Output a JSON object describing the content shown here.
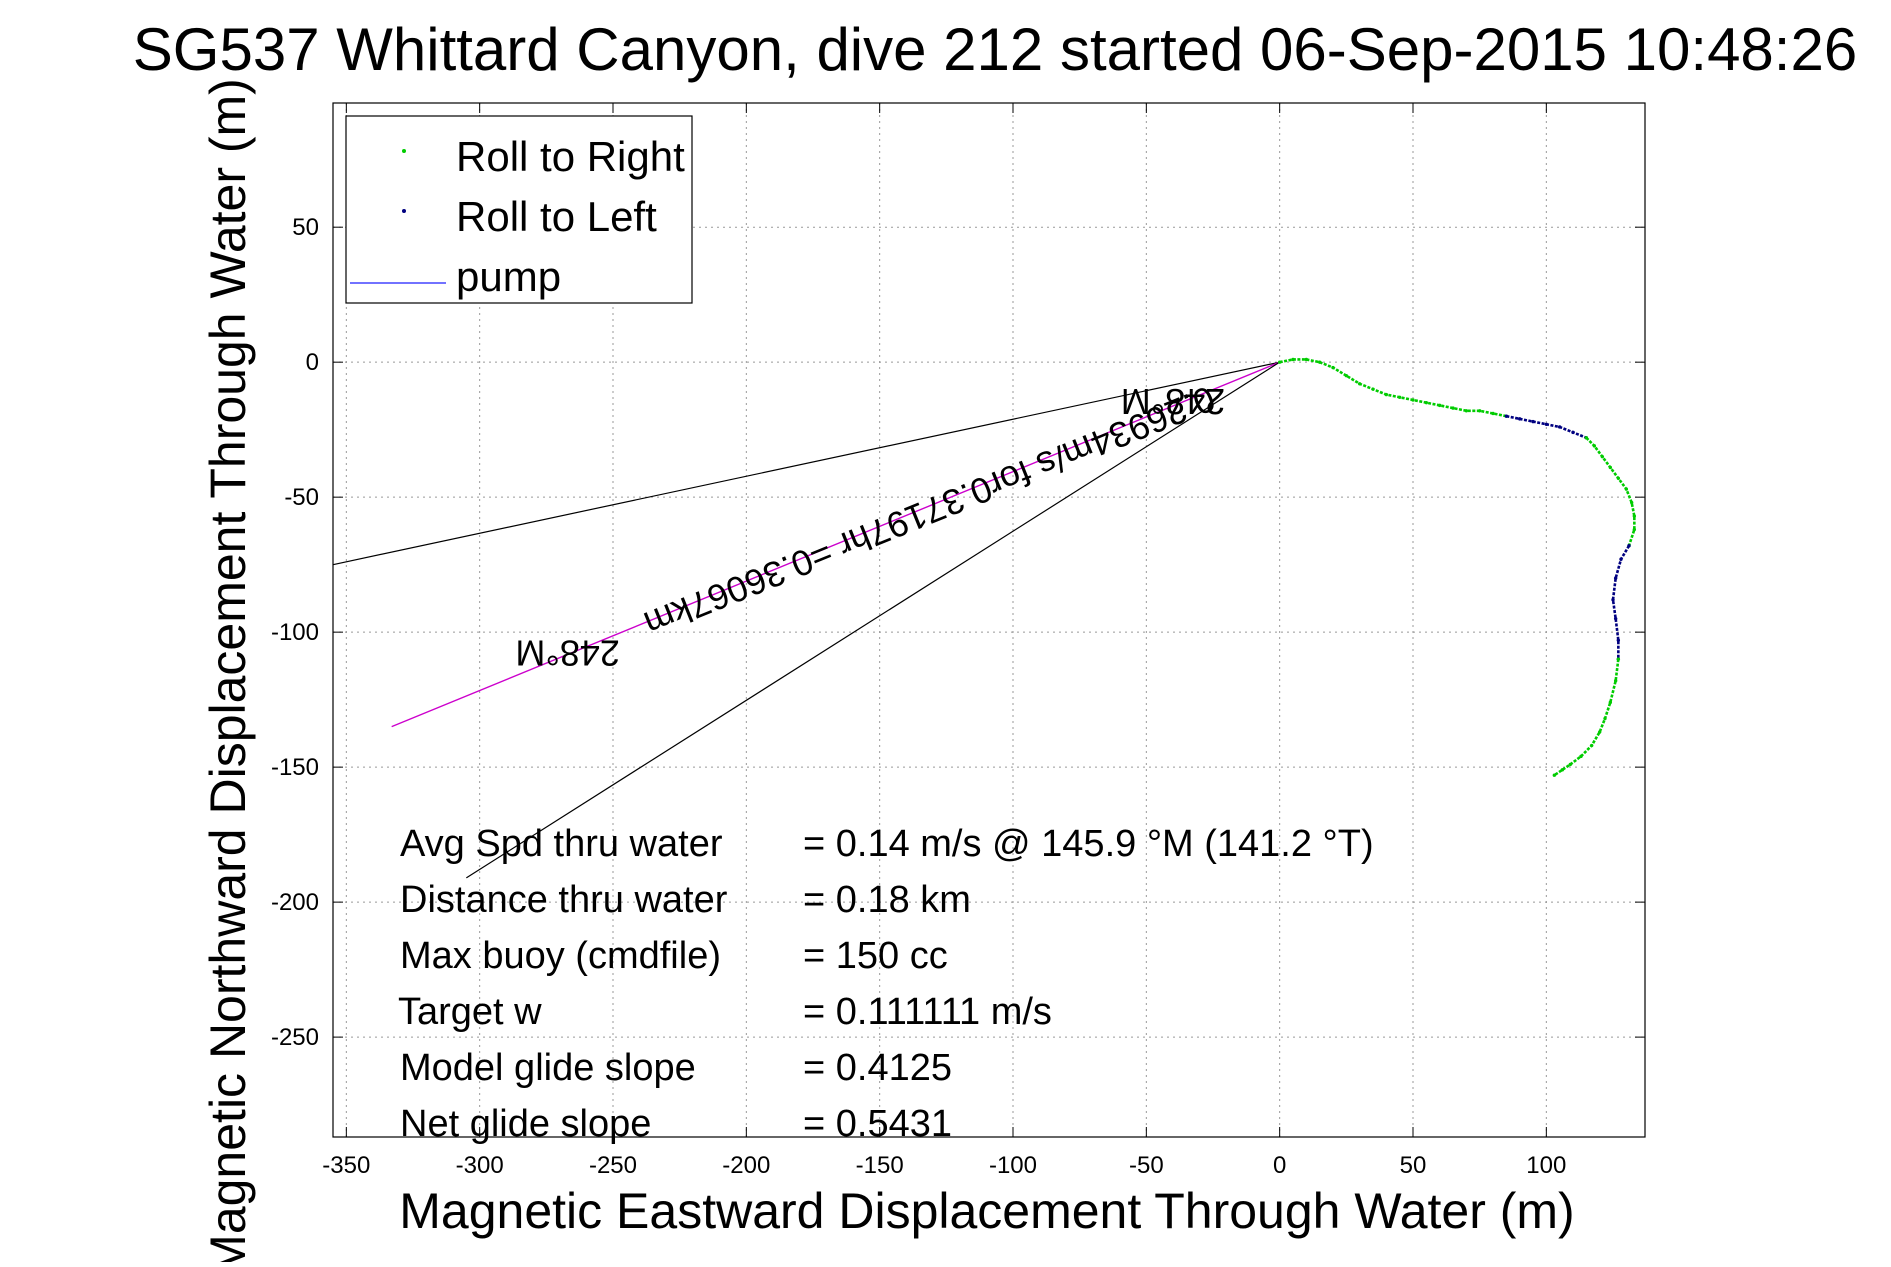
{
  "chart_data": {
    "type": "scatter",
    "title": "SG537 Whittard Canyon, dive 212 started 06-Sep-2015 10:48:26",
    "xlabel": "Magnetic Eastward Displacement Through Water (m)",
    "ylabel": "Magnetic Northward Displacement Through Water (m)",
    "xlim": [
      -355,
      137
    ],
    "ylim": [
      -287,
      96
    ],
    "xticks": [
      -350,
      -300,
      -250,
      -200,
      -150,
      -100,
      -50,
      0,
      50,
      100
    ],
    "yticks": [
      50,
      0,
      -50,
      -100,
      -150,
      -200,
      -250
    ],
    "grid": true,
    "legend_position": "top-left",
    "legend": [
      {
        "label": "Roll to Right",
        "color": "#00cc00",
        "marker": "dot"
      },
      {
        "label": "Roll to Left",
        "color": "#000080",
        "marker": "dot"
      },
      {
        "label": "pump",
        "color": "#4444ff",
        "marker": "line"
      }
    ],
    "track": [
      [
        0,
        0
      ],
      [
        5,
        1
      ],
      [
        10,
        1
      ],
      [
        15,
        0
      ],
      [
        20,
        -2
      ],
      [
        25,
        -5
      ],
      [
        30,
        -8
      ],
      [
        35,
        -10
      ],
      [
        40,
        -12
      ],
      [
        45,
        -13
      ],
      [
        50,
        -14
      ],
      [
        55,
        -15
      ],
      [
        60,
        -16
      ],
      [
        65,
        -17
      ],
      [
        70,
        -18
      ],
      [
        75,
        -18
      ],
      [
        80,
        -19
      ],
      [
        85,
        -20
      ],
      [
        90,
        -21
      ],
      [
        95,
        -22
      ],
      [
        100,
        -23
      ],
      [
        105,
        -24
      ],
      [
        110,
        -26
      ],
      [
        115,
        -28
      ],
      [
        118,
        -31
      ],
      [
        121,
        -35
      ],
      [
        124,
        -39
      ],
      [
        127,
        -43
      ],
      [
        130,
        -47
      ],
      [
        132,
        -52
      ],
      [
        133,
        -57
      ],
      [
        133,
        -62
      ],
      [
        131,
        -68
      ],
      [
        128,
        -73
      ],
      [
        126,
        -80
      ],
      [
        125,
        -88
      ],
      [
        126,
        -95
      ],
      [
        127,
        -103
      ],
      [
        127,
        -110
      ],
      [
        126,
        -118
      ],
      [
        124,
        -126
      ],
      [
        122,
        -132
      ],
      [
        120,
        -137
      ],
      [
        117,
        -142
      ],
      [
        113,
        -146
      ],
      [
        109,
        -149
      ],
      [
        106,
        -151
      ],
      [
        103,
        -153
      ]
    ],
    "track_segments": [
      {
        "series": "Roll to Right",
        "from_index": 0,
        "to_index": 17
      },
      {
        "series": "Roll to Left",
        "from_index": 17,
        "to_index": 23
      },
      {
        "series": "Roll to Right",
        "from_index": 23,
        "to_index": 32
      },
      {
        "series": "Roll to Left",
        "from_index": 32,
        "to_index": 38
      },
      {
        "series": "Roll to Right",
        "from_index": 38,
        "to_index": 47
      }
    ],
    "heading_lines": [
      {
        "from": [
          0,
          0
        ],
        "to": [
          -355,
          -75
        ],
        "color": "#000000"
      },
      {
        "from": [
          0,
          0
        ],
        "to": [
          -333,
          -135
        ],
        "color": "#cc00cc"
      },
      {
        "from": [
          0,
          0
        ],
        "to": [
          -305,
          -191
        ],
        "color": "#000000"
      }
    ],
    "annotations": [
      {
        "text": "248°M",
        "at": [
          -40,
          -10
        ],
        "rotate": 180
      },
      {
        "text": "0.26934m/s for0.37197hr =0.36067km",
        "at": [
          -133,
          -51
        ],
        "rotate": 158
      },
      {
        "text": "248°M",
        "at": [
          -267,
          -103
        ],
        "rotate": 180
      }
    ],
    "stats": [
      {
        "label": "Avg Spd thru water",
        "value": "=  0.14 m/s @ 145.9 °M (141.2 °T)"
      },
      {
        "label": "Distance thru water",
        "value": "=  0.18 km"
      },
      {
        "label": "Max buoy (cmdfile)",
        "value": "= 150 cc"
      },
      {
        "label": "Target w",
        "value": "= 0.111111 m/s"
      },
      {
        "label": "Model glide slope",
        "value": "= 0.4125"
      },
      {
        "label": "Net glide slope",
        "value": "= 0.5431"
      }
    ]
  }
}
